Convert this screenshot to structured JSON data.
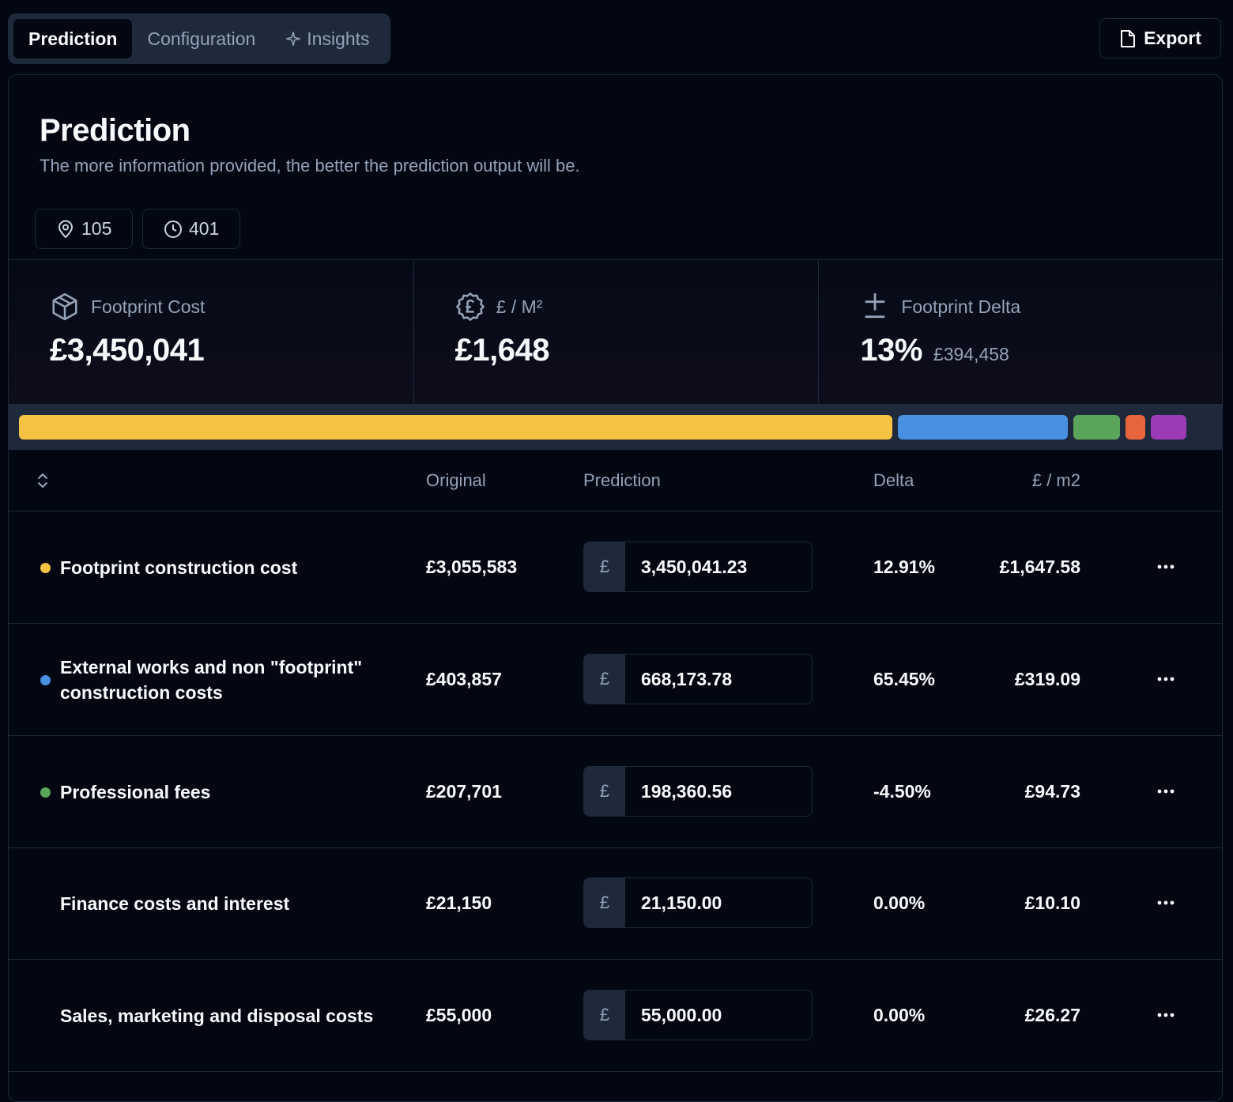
{
  "tabs": [
    {
      "label": "Prediction",
      "active": true
    },
    {
      "label": "Configuration",
      "active": false
    },
    {
      "label": "Insights",
      "active": false,
      "icon": "sparkle-icon"
    }
  ],
  "export": {
    "label": "Export",
    "icon": "file-icon"
  },
  "card": {
    "title": "Prediction",
    "subtitle": "The more information provided, the better the prediction output will be."
  },
  "chips": [
    {
      "icon": "map-pin-icon",
      "value": "105"
    },
    {
      "icon": "clock-icon",
      "value": "401"
    }
  ],
  "stats": [
    {
      "icon": "box-icon",
      "label": "Footprint Cost",
      "value": "£3,450,041",
      "secondary": ""
    },
    {
      "icon": "pound-badge-icon",
      "label": "£ / M²",
      "value": "£1,648",
      "secondary": ""
    },
    {
      "icon": "plus-minus-icon",
      "label": "Footprint Delta",
      "value": "13%",
      "secondary": "£394,458"
    }
  ],
  "breakdown_bar": [
    {
      "share": 0.745,
      "color": "#f6c244"
    },
    {
      "share": 0.145,
      "color": "#4a90e2"
    },
    {
      "share": 0.04,
      "color": "#5aa55a"
    },
    {
      "share": 0.017,
      "color": "#e8643c"
    },
    {
      "share": 0.03,
      "color": "#9b3bb5"
    }
  ],
  "table": {
    "headers": {
      "original": "Original",
      "prediction": "Prediction",
      "delta": "Delta",
      "per_m2": "£ / m2"
    },
    "currency_prefix": "£",
    "rows": [
      {
        "name": "Footprint construction cost",
        "dot": "#f6c244",
        "original": "£3,055,583",
        "prediction": "3,450,041.23",
        "delta": "12.91%",
        "per_m2": "£1,647.58"
      },
      {
        "name": "External works and non \"footprint\" construction costs",
        "dot": "#4a90e2",
        "original": "£403,857",
        "prediction": "668,173.78",
        "delta": "65.45%",
        "per_m2": "£319.09"
      },
      {
        "name": "Professional fees",
        "dot": "#5aa55a",
        "original": "£207,701",
        "prediction": "198,360.56",
        "delta": "-4.50%",
        "per_m2": "£94.73"
      },
      {
        "name": "Finance costs and interest",
        "dot": "",
        "original": "£21,150",
        "prediction": "21,150.00",
        "delta": "0.00%",
        "per_m2": "£10.10"
      },
      {
        "name": "Sales, marketing and disposal costs",
        "dot": "",
        "original": "£55,000",
        "prediction": "55,000.00",
        "delta": "0.00%",
        "per_m2": "£26.27"
      }
    ]
  }
}
